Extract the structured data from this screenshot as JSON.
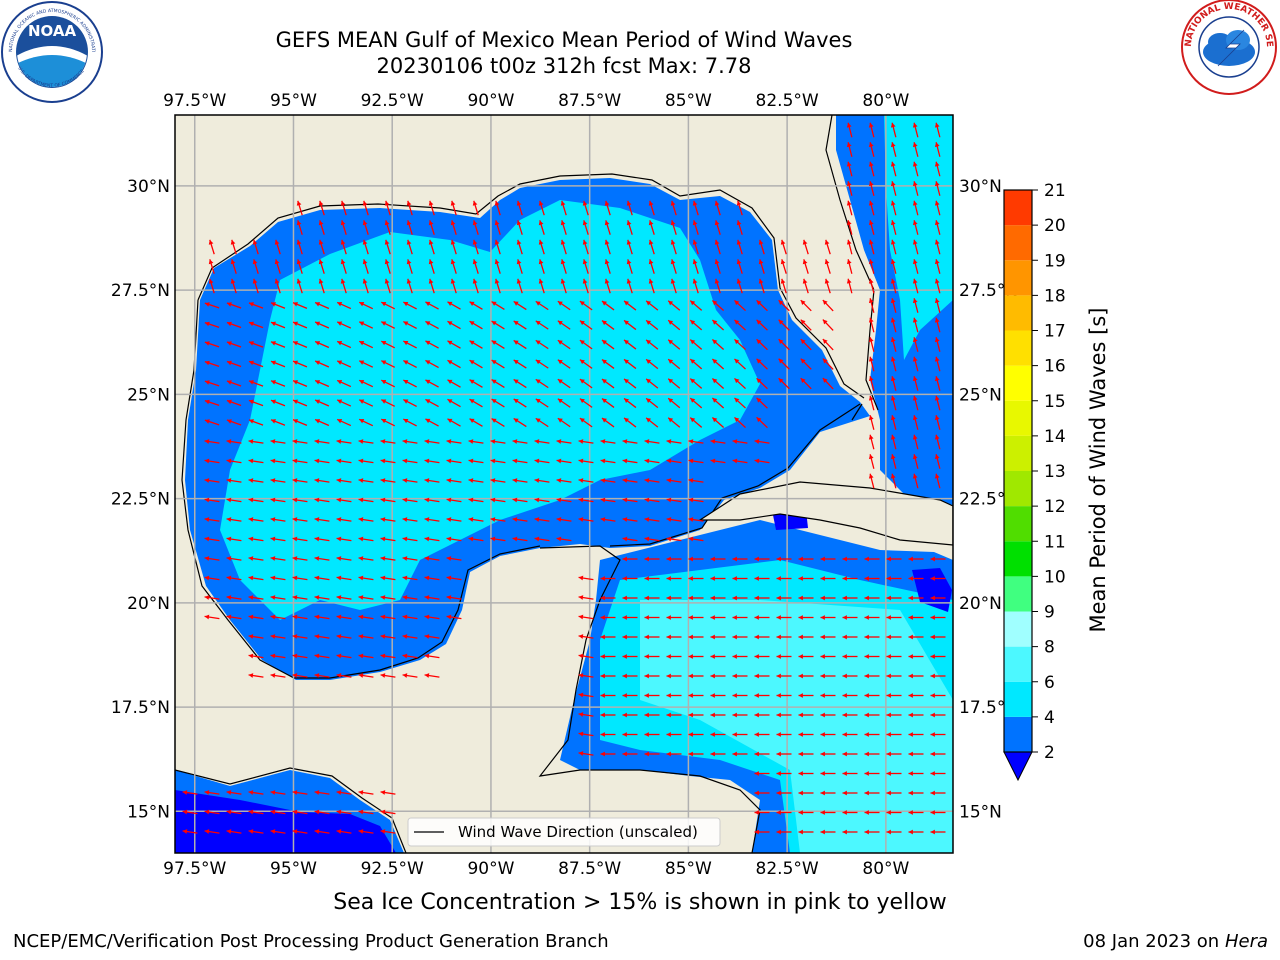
{
  "title_line1": "GEFS MEAN Gulf of Mexico Mean Period of Wind Waves",
  "title_line2": "20230106 t00z 312h fcst   Max: 7.78",
  "logos": {
    "left": {
      "name": "NOAA",
      "ring_text": "NATIONAL OCEANIC AND ATMOSPHERIC ADMINISTRATION",
      "bottom_text": "U.S. DEPARTMENT OF COMMERCE"
    },
    "right": {
      "ring_text": "NATIONAL WEATHER SERVICE"
    }
  },
  "map": {
    "lon_labels": [
      "97.5°W",
      "95°W",
      "92.5°W",
      "90°W",
      "87.5°W",
      "85°W",
      "82.5°W",
      "80°W"
    ],
    "lon_values": [
      -97.5,
      -95,
      -92.5,
      -90,
      -87.5,
      -85,
      -82.5,
      -80
    ],
    "lat_labels": [
      "30°N",
      "27.5°N",
      "25°N",
      "22.5°N",
      "20°N",
      "17.5°N",
      "15°N"
    ],
    "lat_values": [
      30,
      27.5,
      25,
      22.5,
      20,
      17.5,
      15
    ],
    "lon_range": [
      -98,
      -78.3
    ],
    "lat_range": [
      14,
      31.7
    ],
    "land_color": "#efecdc",
    "grid_color": "#b0b0b0",
    "arrow_color": "#ff0000",
    "legend_label": "Wind Wave Direction (unscaled)"
  },
  "colorbar": {
    "label": "Mean Period of Wind Waves [s]",
    "tick_labels": [
      "2",
      "4",
      "6",
      "8",
      "9",
      "10",
      "11",
      "12",
      "13",
      "14",
      "15",
      "16",
      "17",
      "18",
      "19",
      "20",
      "21"
    ],
    "under_color": "#0000ff",
    "colors": [
      "#0073ff",
      "#00e8ff",
      "#4cf8ff",
      "#a0ffff",
      "#40ff80",
      "#00e000",
      "#50dd00",
      "#a0e800",
      "#ccf000",
      "#e8f800",
      "#ffff00",
      "#ffe000",
      "#ffbb00",
      "#ff9500",
      "#ff6a00",
      "#ff3a00",
      "#ff0000"
    ]
  },
  "ice_note": "Sea Ice Concentration > 15% is shown in pink to yellow",
  "footer_left": "NCEP/EMC/Verification Post Processing Product Generation Branch",
  "footer_right_date": "08 Jan 2023 on ",
  "footer_right_host": "Hera"
}
